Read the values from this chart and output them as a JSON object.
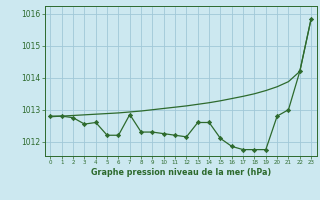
{
  "hours": [
    0,
    1,
    2,
    3,
    4,
    5,
    6,
    7,
    8,
    9,
    10,
    11,
    12,
    13,
    14,
    15,
    16,
    17,
    18,
    19,
    20,
    21,
    22,
    23
  ],
  "pressure": [
    1012.8,
    1012.8,
    1012.75,
    1012.55,
    1012.6,
    1012.2,
    1012.2,
    1012.85,
    1012.3,
    1012.3,
    1012.25,
    1012.2,
    1012.15,
    1012.6,
    1012.6,
    1012.1,
    1011.85,
    1011.75,
    1011.75,
    1011.75,
    1012.8,
    1013.0,
    1014.2,
    1015.85
  ],
  "trend": [
    1012.78,
    1012.8,
    1012.82,
    1012.84,
    1012.86,
    1012.88,
    1012.9,
    1012.93,
    1012.96,
    1013.0,
    1013.04,
    1013.08,
    1013.12,
    1013.17,
    1013.22,
    1013.28,
    1013.35,
    1013.42,
    1013.5,
    1013.6,
    1013.72,
    1013.88,
    1014.2,
    1015.85
  ],
  "line_color": "#2d6a2d",
  "bg_color": "#cce8f0",
  "grid_color": "#a0c8d8",
  "ylabel_ticks": [
    1012,
    1013,
    1014,
    1015,
    1016
  ],
  "ylim": [
    1011.55,
    1016.25
  ],
  "xlim": [
    -0.5,
    23.5
  ],
  "xlabel": "Graphe pression niveau de la mer (hPa)"
}
